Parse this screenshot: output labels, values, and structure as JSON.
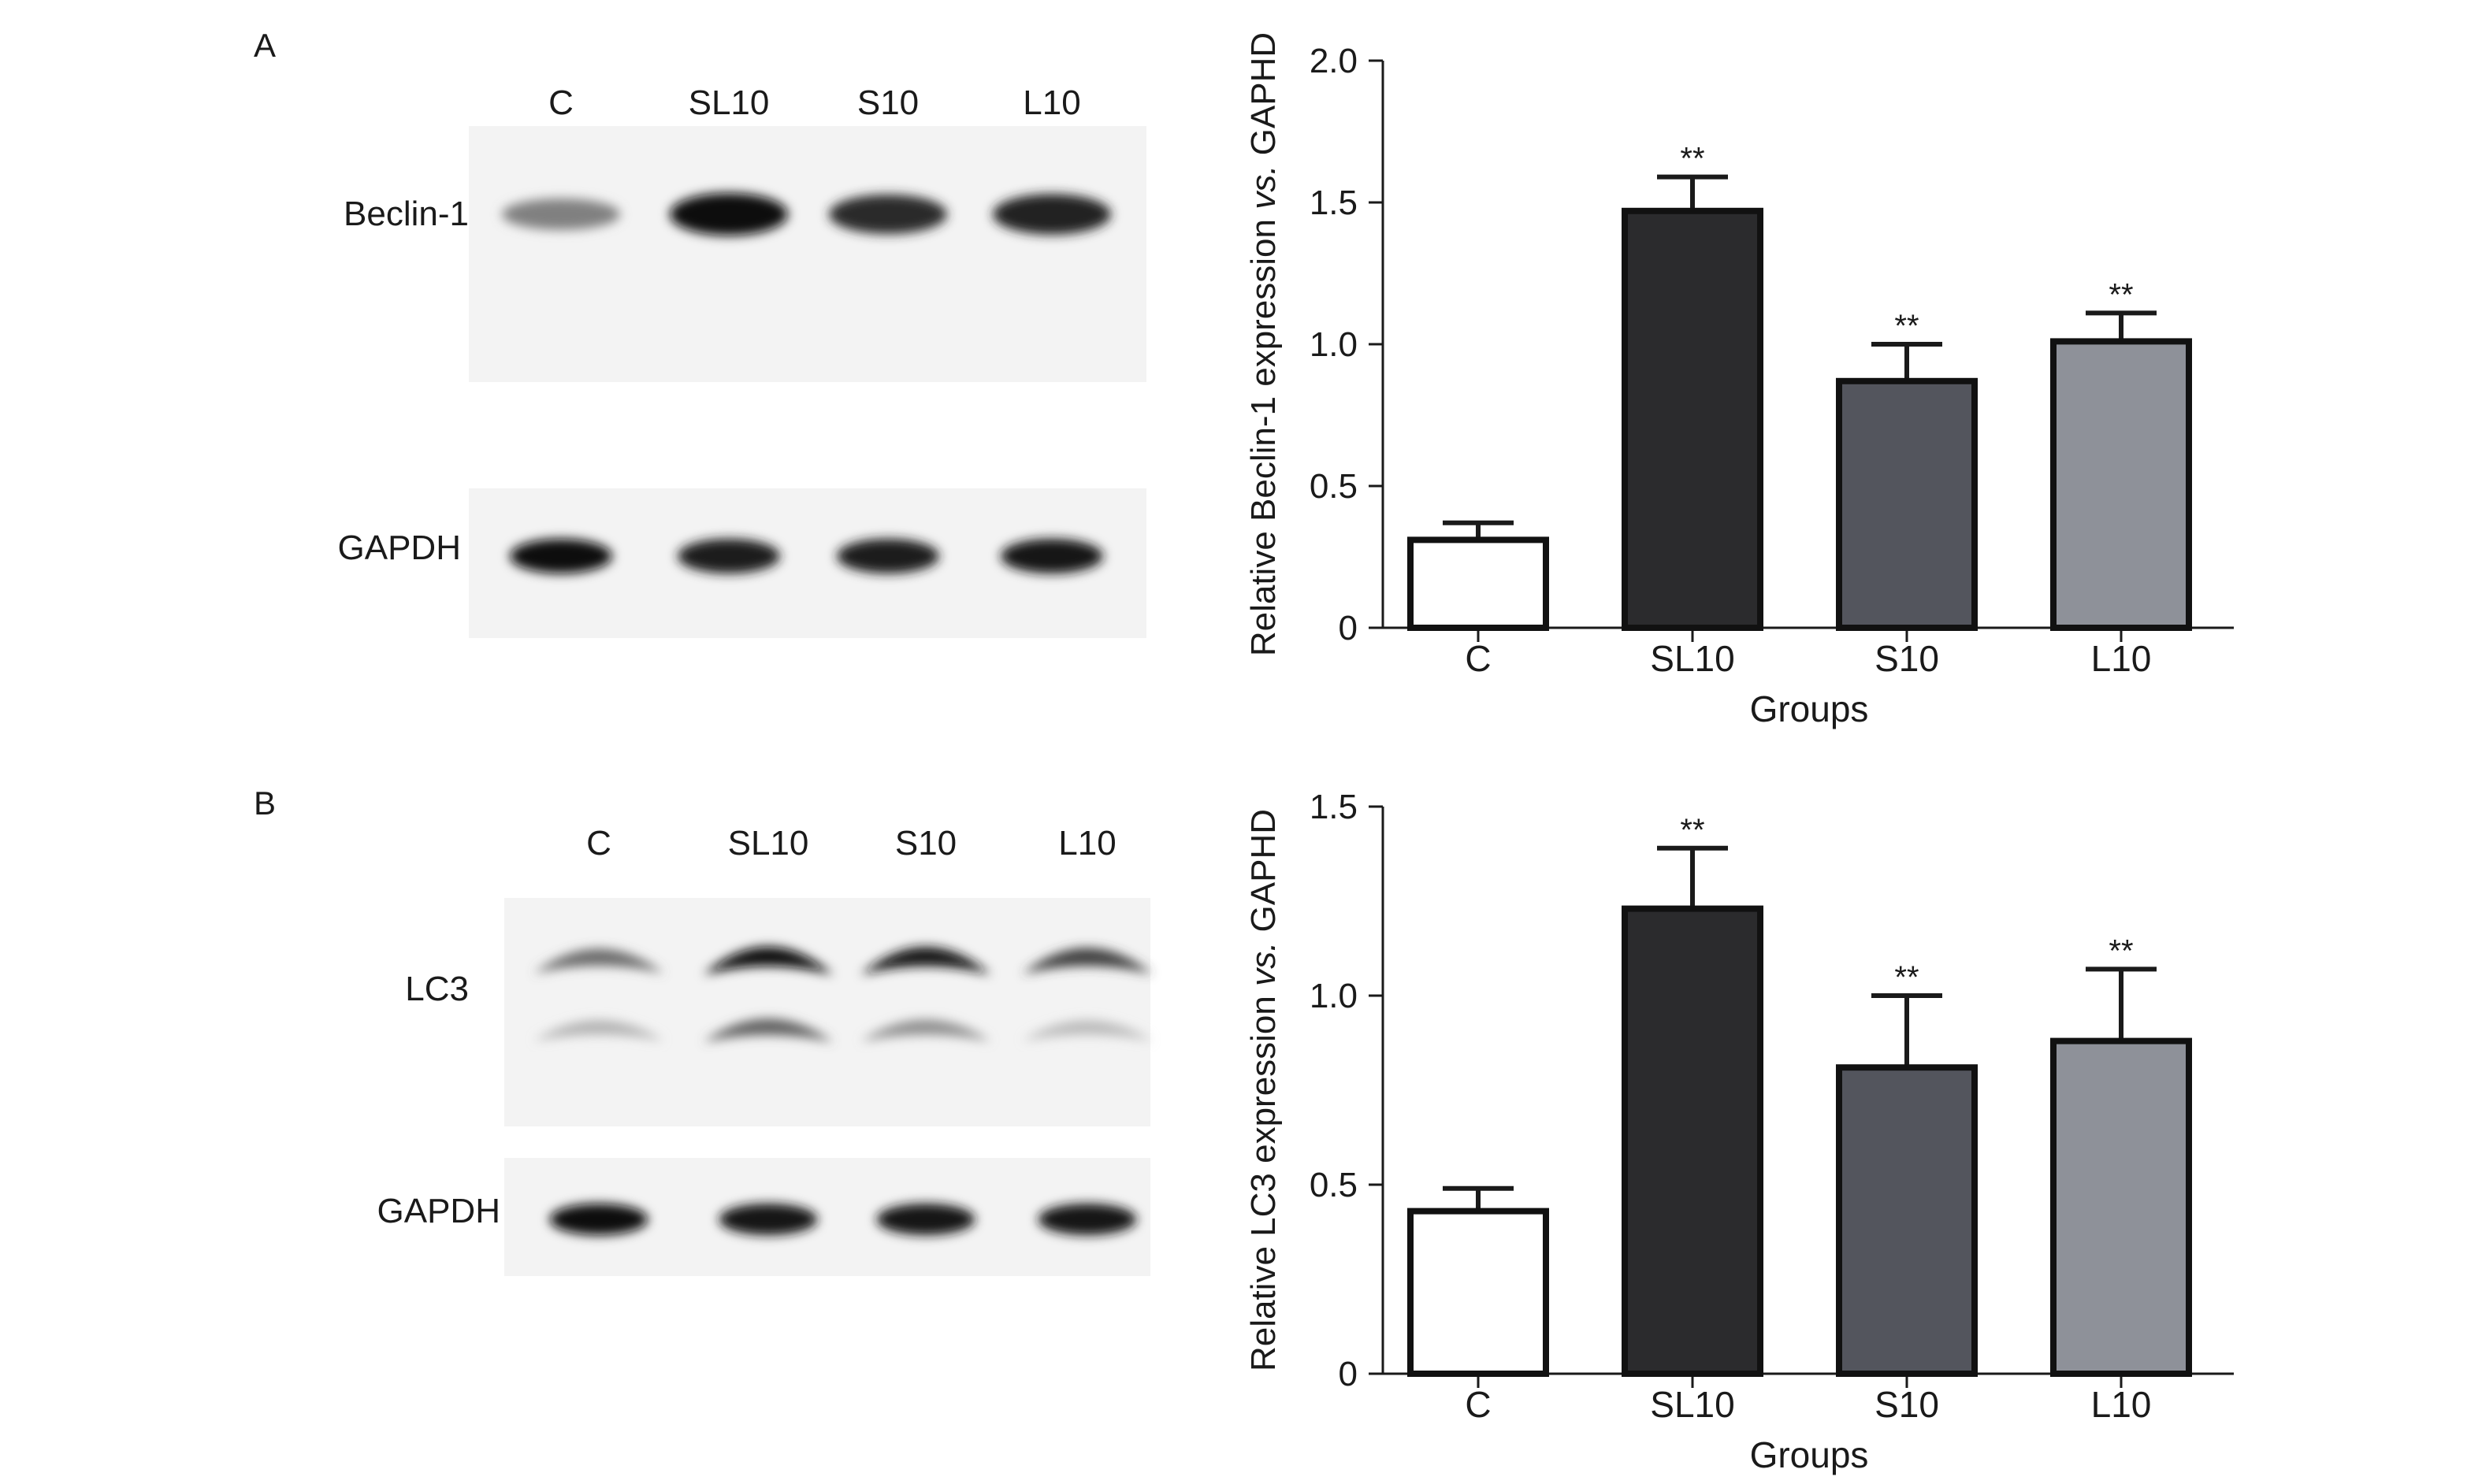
{
  "panels": [
    {
      "letter": "A",
      "blot": {
        "lanes": [
          "C",
          "SL10",
          "S10",
          "L10"
        ],
        "rows": [
          {
            "label": "Beclin-1",
            "intensity": [
              0.45,
              1.0,
              0.85,
              0.9
            ]
          },
          {
            "label": "GAPDH",
            "intensity": [
              1.0,
              0.92,
              0.92,
              0.95
            ]
          }
        ]
      }
    },
    {
      "letter": "B",
      "blot": {
        "lanes": [
          "C",
          "SL10",
          "S10",
          "L10"
        ],
        "rows": [
          {
            "label": "LC3",
            "intensity": [
              0.55,
              1.0,
              0.95,
              0.75
            ],
            "lower_intensity": [
              0.22,
              0.6,
              0.38,
              0.18
            ]
          },
          {
            "label": "GAPDH",
            "intensity": [
              1.0,
              0.95,
              0.95,
              0.95
            ]
          }
        ]
      }
    }
  ],
  "chart_data": [
    {
      "type": "bar",
      "categories": [
        "C",
        "SL10",
        "S10",
        "L10"
      ],
      "values": [
        0.31,
        1.47,
        0.87,
        1.01
      ],
      "errors": [
        0.06,
        0.12,
        0.13,
        0.1
      ],
      "significance": [
        "",
        "**",
        "**",
        "**"
      ],
      "bar_colors": [
        "#ffffff",
        "#2b2b2d",
        "#53555d",
        "#8e9199"
      ],
      "ylabel_prefix": "Relative Beclin-1 expression ",
      "ylabel_italic": "vs.",
      "ylabel_suffix": " GAPHD",
      "xlabel": "Groups",
      "ylim": [
        0,
        2.0
      ],
      "yticks": [
        0,
        0.5,
        1.0,
        1.5,
        2.0
      ],
      "ytick_labels": [
        "0",
        "0.5",
        "1.0",
        "1.5",
        "2.0"
      ]
    },
    {
      "type": "bar",
      "categories": [
        "C",
        "SL10",
        "S10",
        "L10"
      ],
      "values": [
        0.43,
        1.23,
        0.81,
        0.88
      ],
      "errors": [
        0.06,
        0.16,
        0.19,
        0.19
      ],
      "significance": [
        "",
        "**",
        "**",
        "**"
      ],
      "bar_colors": [
        "#ffffff",
        "#2b2b2d",
        "#53555d",
        "#8e9199"
      ],
      "ylabel_prefix": "Relative LC3 expression ",
      "ylabel_italic": "vs.",
      "ylabel_suffix": " GAPHD",
      "xlabel": "Groups",
      "ylim": [
        0,
        1.5
      ],
      "yticks": [
        0,
        0.5,
        1.0,
        1.5
      ],
      "ytick_labels": [
        "0",
        "0.5",
        "1.0",
        "1.5"
      ]
    }
  ]
}
